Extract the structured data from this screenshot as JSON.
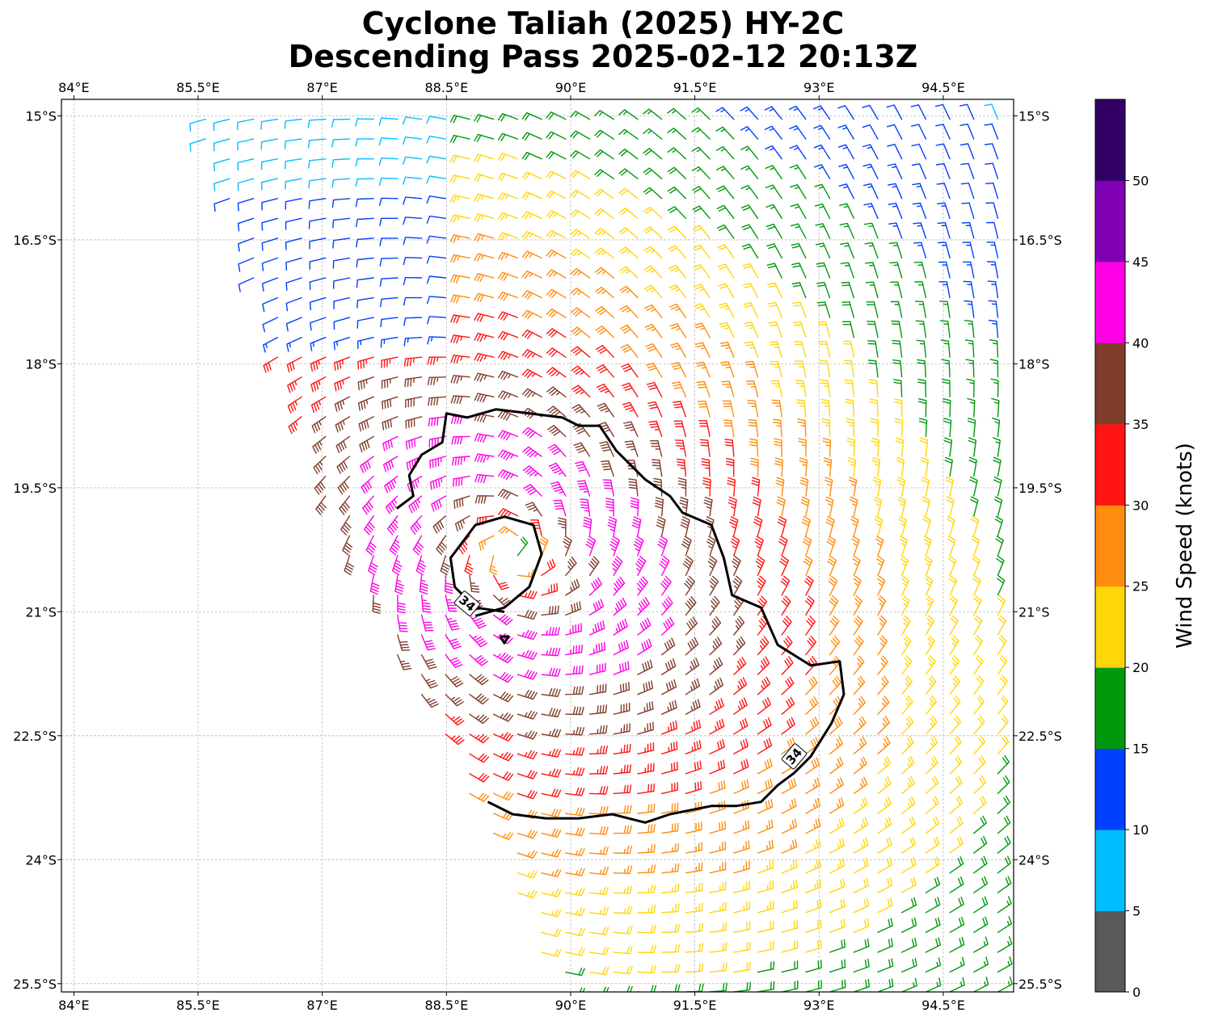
{
  "title_line1": "Cyclone Taliah (2025) HY-2C",
  "title_line2": "Descending Pass 2025-02-12 20:13Z",
  "map": {
    "lon_range": [
      83.85,
      95.35
    ],
    "lat_range": [
      -25.6,
      -14.8
    ],
    "lon_ticks": [
      84,
      85.5,
      87,
      88.5,
      90,
      91.5,
      93,
      94.5
    ],
    "lon_tick_labels": [
      "84°E",
      "85.5°E",
      "87°E",
      "88.5°E",
      "90°E",
      "91.5°E",
      "93°E",
      "94.5°E"
    ],
    "lat_ticks": [
      -15,
      -16.5,
      -18,
      -19.5,
      -21,
      -22.5,
      -24,
      -25.5
    ],
    "lat_tick_labels": [
      "15°S",
      "16.5°S",
      "18°S",
      "19.5°S",
      "21°S",
      "22.5°S",
      "24°S",
      "25.5°S"
    ],
    "gridlines": true,
    "storm_center": {
      "lon": 89.3,
      "lat": -20.3
    },
    "contour_label": "34",
    "contour_34kt": [
      [
        87.9,
        -19.75
      ],
      [
        88.1,
        -19.6
      ],
      [
        88.05,
        -19.35
      ],
      [
        88.2,
        -19.1
      ],
      [
        88.45,
        -18.95
      ],
      [
        88.5,
        -18.6
      ],
      [
        88.75,
        -18.65
      ],
      [
        89.1,
        -18.55
      ],
      [
        89.5,
        -18.6
      ],
      [
        89.9,
        -18.65
      ],
      [
        90.1,
        -18.75
      ],
      [
        90.35,
        -18.75
      ],
      [
        90.55,
        -19.05
      ],
      [
        90.9,
        -19.4
      ],
      [
        91.2,
        -19.6
      ],
      [
        91.35,
        -19.8
      ],
      [
        91.7,
        -19.95
      ],
      [
        91.85,
        -20.35
      ],
      [
        91.95,
        -20.8
      ],
      [
        92.3,
        -20.95
      ],
      [
        92.5,
        -21.4
      ],
      [
        92.9,
        -21.65
      ],
      [
        93.25,
        -21.6
      ],
      [
        93.3,
        -22.0
      ],
      [
        93.15,
        -22.35
      ],
      [
        92.9,
        -22.75
      ],
      [
        92.7,
        -22.95
      ],
      [
        92.5,
        -23.1
      ],
      [
        92.3,
        -23.3
      ],
      [
        92.0,
        -23.35
      ],
      [
        91.7,
        -23.35
      ],
      [
        91.2,
        -23.45
      ],
      [
        90.9,
        -23.55
      ],
      [
        90.5,
        -23.45
      ],
      [
        90.1,
        -23.5
      ],
      [
        89.7,
        -23.5
      ],
      [
        89.3,
        -23.45
      ],
      [
        89.0,
        -23.3
      ]
    ],
    "contour_inner": [
      [
        88.85,
        -21.05
      ],
      [
        89.2,
        -20.95
      ],
      [
        89.5,
        -20.7
      ],
      [
        89.65,
        -20.3
      ],
      [
        89.55,
        -19.95
      ],
      [
        89.2,
        -19.85
      ],
      [
        88.85,
        -19.95
      ],
      [
        88.55,
        -20.35
      ],
      [
        88.6,
        -20.7
      ],
      [
        88.85,
        -20.95
      ],
      [
        89.2,
        -21.0
      ]
    ],
    "contour_small": [
      [
        89.15,
        -21.3
      ],
      [
        89.25,
        -21.3
      ],
      [
        89.2,
        -21.38
      ],
      [
        89.15,
        -21.3
      ]
    ],
    "swath_polygon": [
      [
        85.45,
        -14.9
      ],
      [
        95.35,
        -14.9
      ],
      [
        95.35,
        -25.6
      ],
      [
        89.85,
        -25.6
      ],
      [
        88.8,
        -23.3
      ],
      [
        87.3,
        -20.4
      ],
      [
        85.6,
        -15.4
      ]
    ]
  },
  "colorbar": {
    "label": "Wind Speed (knots)",
    "bins": [
      0,
      5,
      10,
      15,
      20,
      25,
      30,
      35,
      40,
      45,
      50,
      55
    ],
    "colors": [
      "#595959",
      "#00bfff",
      "#0040ff",
      "#00990d",
      "#ffd60a",
      "#ff8c0d",
      "#ff1414",
      "#803d2b",
      "#ff00e6",
      "#8000b3",
      "#330066"
    ],
    "tick_values": [
      0,
      5,
      10,
      15,
      20,
      25,
      30,
      35,
      40,
      45,
      50
    ],
    "tick_labels": [
      "0",
      "5",
      "10",
      "15",
      "20",
      "25",
      "30",
      "35",
      "40",
      "45",
      "50"
    ]
  }
}
